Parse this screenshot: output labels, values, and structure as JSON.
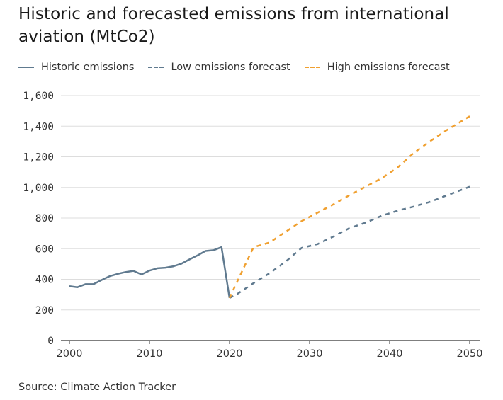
{
  "page": {
    "title": "Historic and forecasted emissions from international aviation (MtCo2)",
    "source": "Source: Climate Action Tracker"
  },
  "chart_data": {
    "type": "line",
    "title": "Historic and forecasted emissions from international aviation (MtCo2)",
    "xlabel": "",
    "ylabel": "",
    "xlim": [
      2000,
      2050
    ],
    "ylim": [
      0,
      1600
    ],
    "x_ticks": [
      2000,
      2010,
      2020,
      2030,
      2040,
      2050
    ],
    "y_ticks": [
      0,
      200,
      400,
      600,
      800,
      1000,
      1200,
      1400,
      1600
    ],
    "y_tick_labels": [
      "0",
      "200",
      "400",
      "600",
      "800",
      "1,000",
      "1,200",
      "1,400",
      "1,600"
    ],
    "grid": true,
    "legend": "top-left",
    "series": [
      {
        "name": "Historic emissions",
        "color": "#607a8f",
        "style": "solid",
        "x": [
          2000,
          2001,
          2002,
          2003,
          2004,
          2005,
          2006,
          2007,
          2008,
          2009,
          2010,
          2011,
          2012,
          2013,
          2014,
          2015,
          2016,
          2017,
          2018,
          2019,
          2020
        ],
        "values": [
          355,
          348,
          368,
          368,
          395,
          420,
          435,
          447,
          455,
          432,
          457,
          472,
          476,
          485,
          502,
          530,
          556,
          585,
          590,
          610,
          278
        ]
      },
      {
        "name": "Low emissions forecast",
        "color": "#607a8f",
        "style": "dashed",
        "x": [
          2020,
          2021,
          2023,
          2025,
          2027,
          2029,
          2031,
          2033,
          2035,
          2037,
          2039,
          2041,
          2043,
          2045,
          2047,
          2050
        ],
        "values": [
          278,
          305,
          375,
          440,
          515,
          605,
          630,
          680,
          735,
          770,
          815,
          848,
          875,
          905,
          945,
          1005
        ]
      },
      {
        "name": "High emissions forecast",
        "color": "#f0a030",
        "style": "dashed",
        "x": [
          2020,
          2021,
          2023,
          2025,
          2027,
          2029,
          2031,
          2033,
          2035,
          2037,
          2039,
          2041,
          2043,
          2045,
          2047,
          2050
        ],
        "values": [
          278,
          390,
          610,
          640,
          710,
          780,
          835,
          890,
          950,
          1005,
          1060,
          1130,
          1225,
          1300,
          1370,
          1465
        ]
      }
    ]
  }
}
